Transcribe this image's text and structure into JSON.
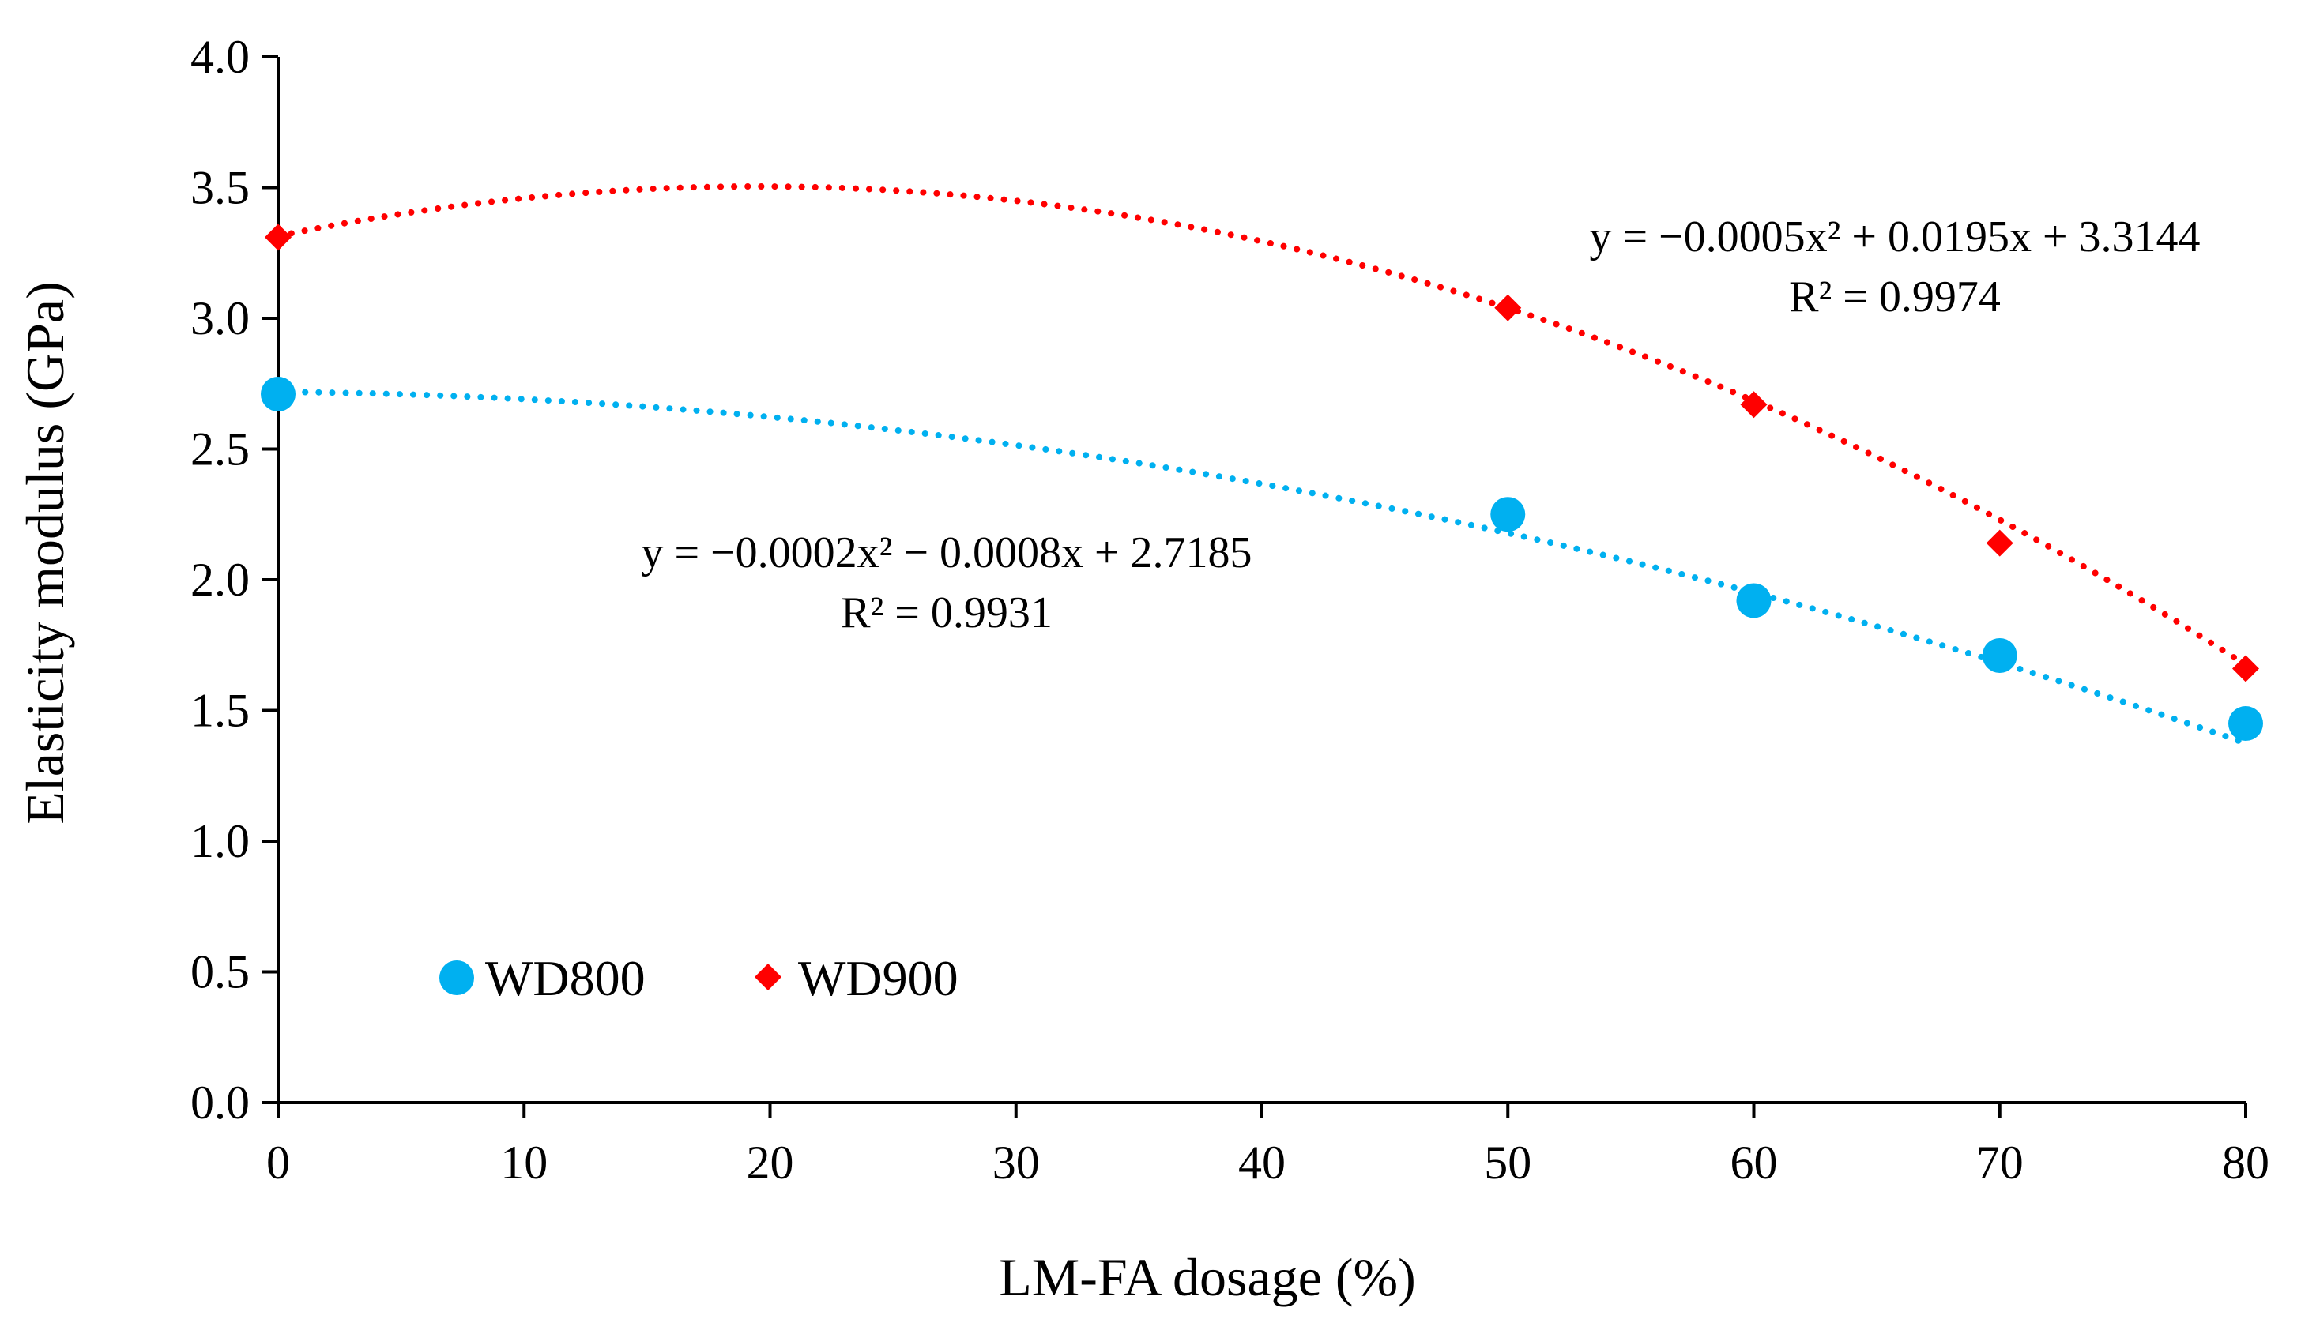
{
  "chart_data": {
    "type": "scatter",
    "title": "",
    "xlabel": "LM-FA dosage (%)",
    "ylabel": "Elasticity modulus (GPa)",
    "xlim": [
      0,
      80
    ],
    "ylim": [
      0,
      4
    ],
    "x_ticks": [
      0,
      10,
      20,
      30,
      40,
      50,
      60,
      70,
      80
    ],
    "x_tick_labels": [
      "0",
      "10",
      "20",
      "30",
      "40",
      "50",
      "60",
      "70",
      "80"
    ],
    "y_ticks": [
      0,
      0.5,
      1,
      1.5,
      2,
      2.5,
      3,
      3.5,
      4
    ],
    "y_tick_labels": [
      "0.0",
      "0.5",
      "1.0",
      "1.5",
      "2.0",
      "2.5",
      "3.0",
      "3.5",
      "4.0"
    ],
    "grid": false,
    "legend_position": "bottom-left",
    "series": [
      {
        "name": "WD800",
        "marker": "circle",
        "color": "#00b0f0",
        "x": [
          0,
          50,
          60,
          70,
          80
        ],
        "y": [
          2.71,
          2.25,
          1.92,
          1.71,
          1.45
        ],
        "trendline": {
          "type": "polynomial",
          "coefficients": [
            -0.0002,
            -0.0008,
            2.7185
          ],
          "equation": "y = −0.0002x² − 0.0008x + 2.7185",
          "r_squared": "R² = 0.9931"
        }
      },
      {
        "name": "WD900",
        "marker": "diamond",
        "color": "#ff0000",
        "x": [
          0,
          50,
          60,
          70,
          80
        ],
        "y": [
          3.31,
          3.04,
          2.67,
          2.14,
          1.66
        ],
        "trendline": {
          "type": "polynomial",
          "coefficients": [
            -0.0005,
            0.0195,
            3.3144
          ],
          "equation": "y = −0.0005x² + 0.0195x + 3.3144",
          "r_squared": "R² = 0.9974"
        }
      }
    ]
  }
}
